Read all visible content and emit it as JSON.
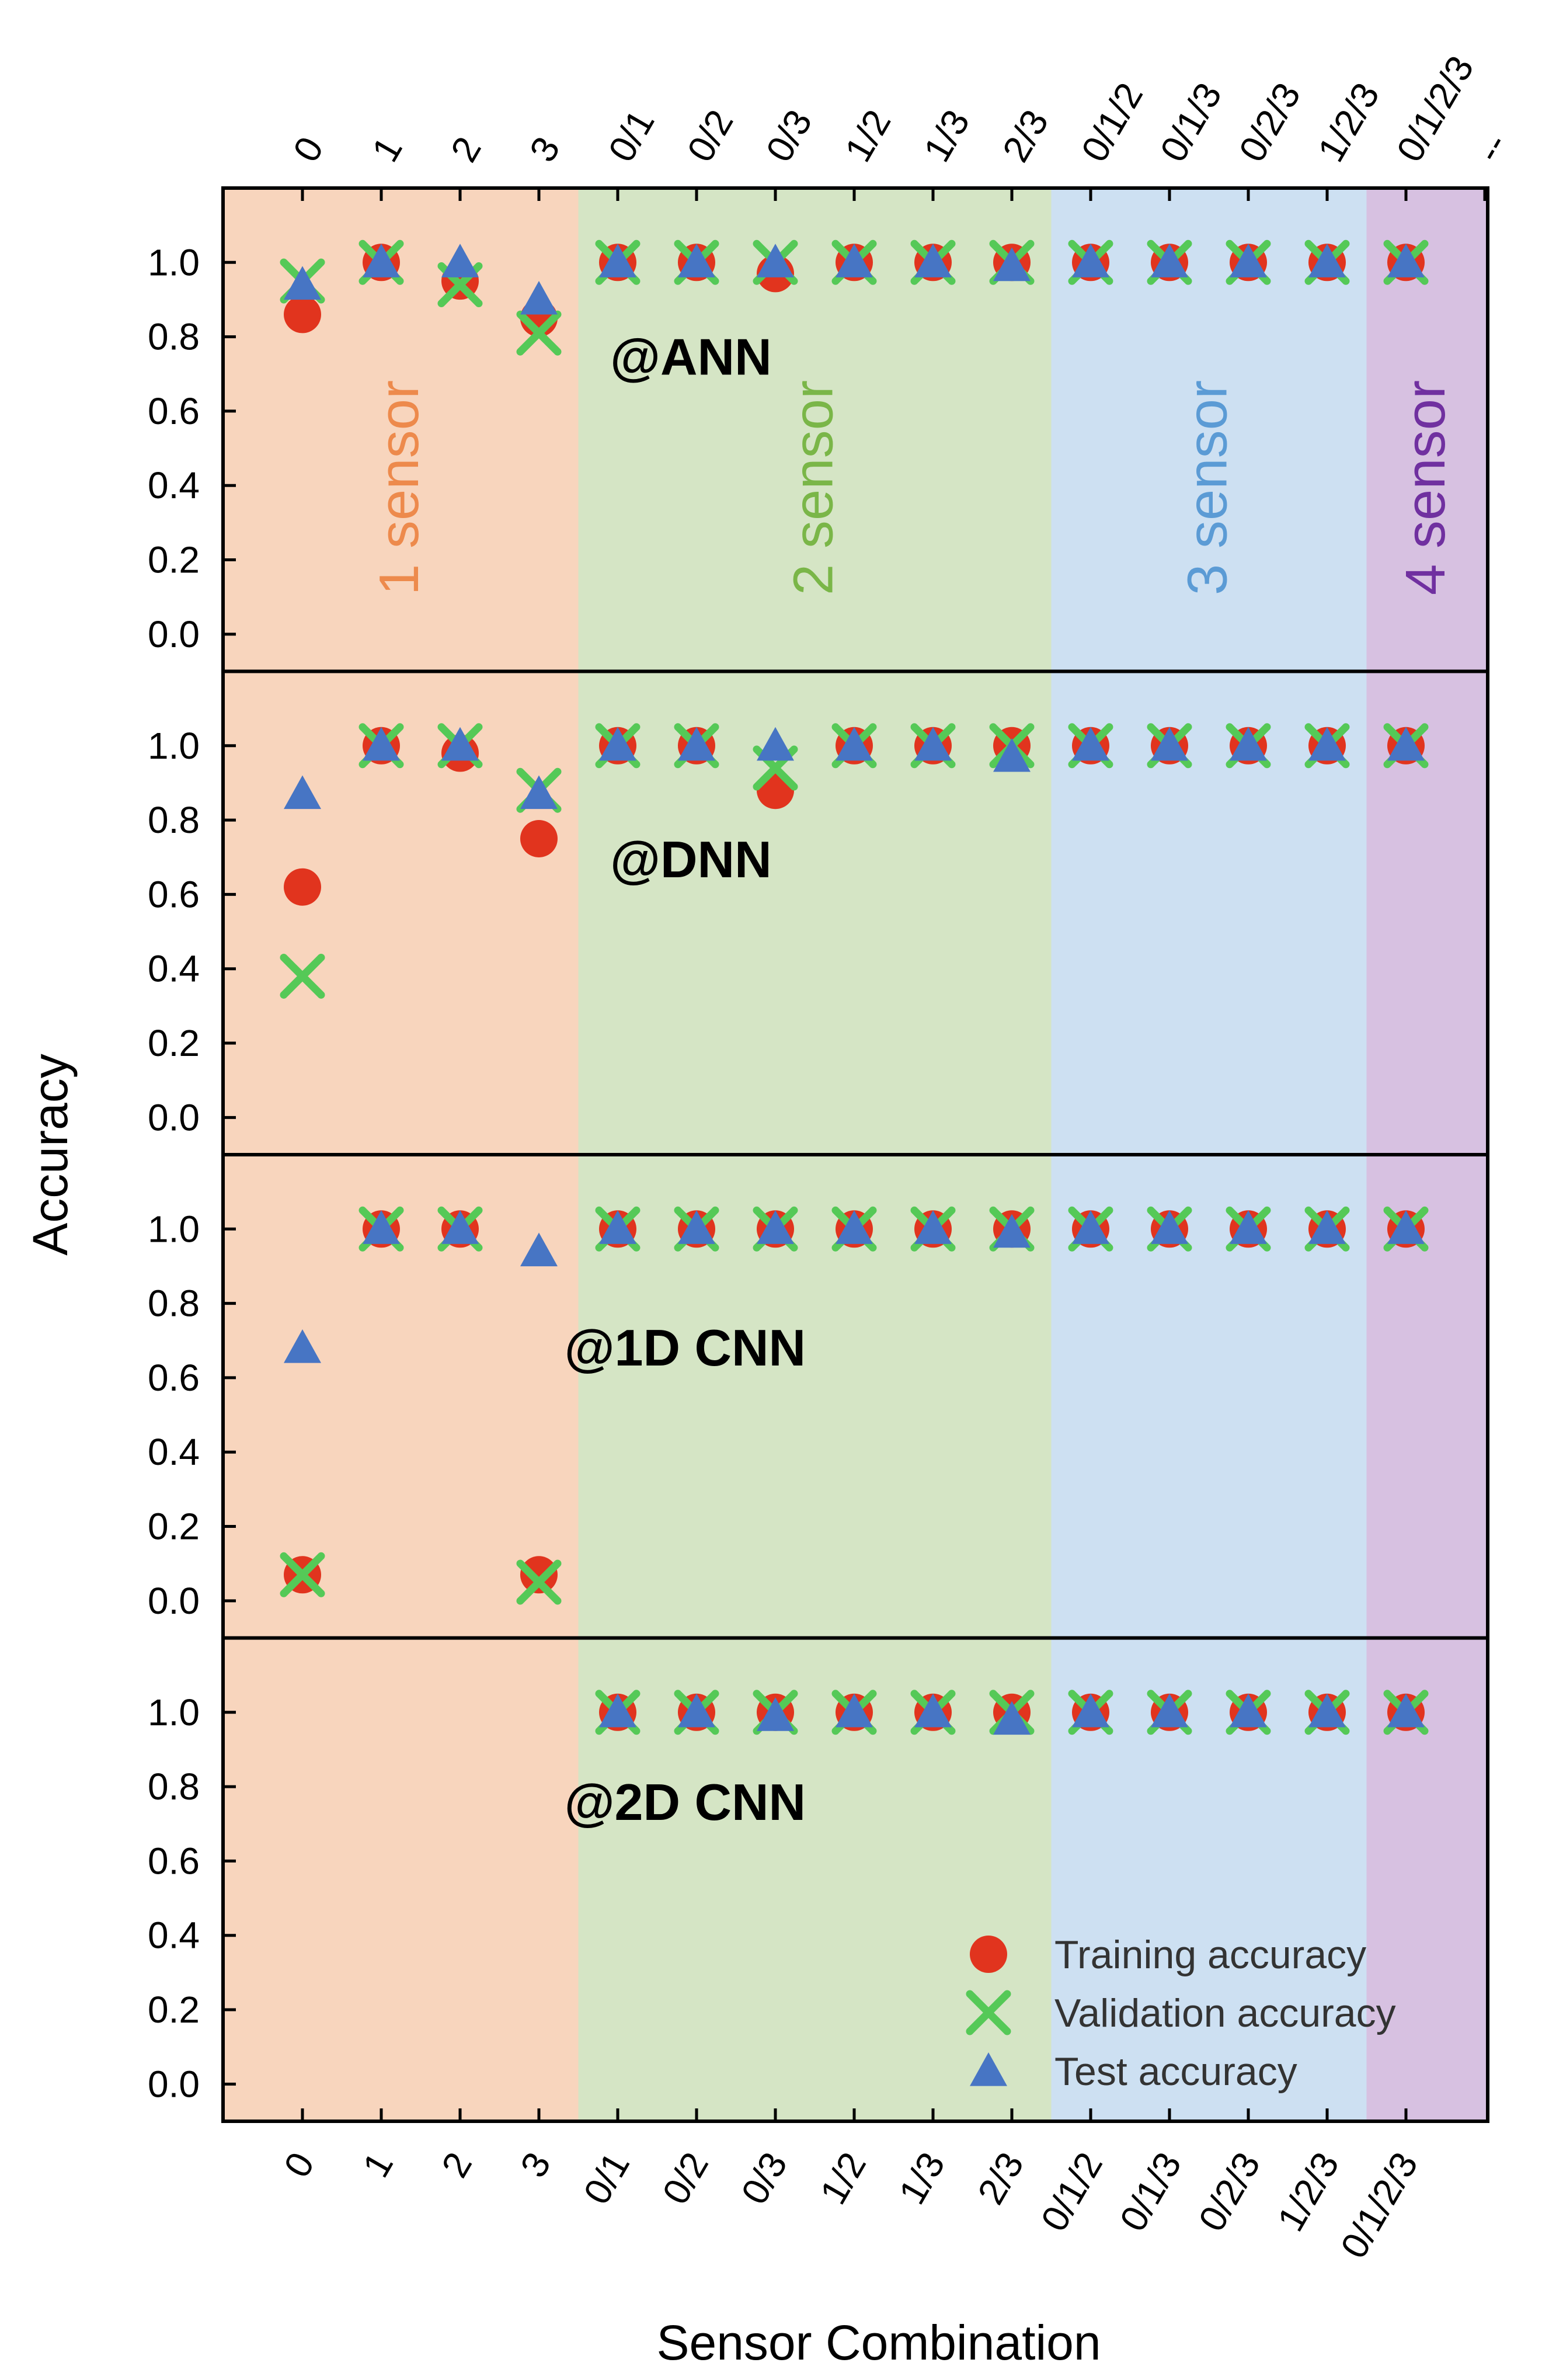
{
  "chart_data": {
    "type": "scatter",
    "categories": [
      "0",
      "1",
      "2",
      "3",
      "0/1",
      "0/2",
      "0/3",
      "1/2",
      "1/3",
      "2/3",
      "0/1/2",
      "0/1/3",
      "0/2/3",
      "1/2/3",
      "0/1/2/3"
    ],
    "top_categories": [
      "0",
      "1",
      "2",
      "3",
      "0/1",
      "0/2",
      "0/3",
      "1/2",
      "1/3",
      "2/3",
      "0/1/2",
      "0/1/3",
      "0/2/3",
      "1/2/3",
      "0/1/2/3",
      "--"
    ],
    "xlabel": "Sensor Combination",
    "ylabel": "Accuracy",
    "ylim": [
      -0.1,
      1.2
    ],
    "yticks": [
      "0.0",
      "0.2",
      "0.4",
      "0.6",
      "0.8",
      "1.0"
    ],
    "regions": [
      {
        "label": "1 sensor",
        "color": "#f8d5bd",
        "label_color": "#ed8a4c",
        "from": 0,
        "to": 3
      },
      {
        "label": "2 sensor",
        "color": "#d5e5c5",
        "label_color": "#7ab648",
        "from": 4,
        "to": 9
      },
      {
        "label": "3 sensor",
        "color": "#cde0f2",
        "label_color": "#5b9bd5",
        "from": 10,
        "to": 13
      },
      {
        "label": "4 sensor",
        "color": "#d7c1e1",
        "label_color": "#7030a0",
        "from": 14,
        "to": 14
      }
    ],
    "legend": {
      "placement": "bottom-right",
      "entries": [
        {
          "name": "Training accuracy",
          "marker": "circle",
          "color": "#e1341e"
        },
        {
          "name": "Validation accuracy",
          "marker": "x",
          "color": "#55c957"
        },
        {
          "name": "Test accuracy",
          "marker": "triangle",
          "color": "#4775c4"
        }
      ]
    },
    "panels": [
      {
        "label": "@ANN",
        "training": [
          0.86,
          1.0,
          0.95,
          0.85,
          1.0,
          1.0,
          0.97,
          1.0,
          1.0,
          1.0,
          1.0,
          1.0,
          1.0,
          1.0,
          1.0
        ],
        "validation": [
          0.95,
          1.0,
          0.94,
          0.81,
          1.0,
          1.0,
          1.0,
          1.0,
          1.0,
          1.0,
          1.0,
          1.0,
          1.0,
          1.0,
          1.0
        ],
        "test": [
          0.94,
          1.0,
          1.0,
          0.9,
          1.0,
          1.0,
          1.0,
          1.0,
          1.0,
          0.99,
          1.0,
          1.0,
          1.0,
          1.0,
          1.0
        ]
      },
      {
        "label": "@DNN",
        "training": [
          0.62,
          1.0,
          0.98,
          0.75,
          1.0,
          1.0,
          0.88,
          1.0,
          1.0,
          1.0,
          1.0,
          1.0,
          1.0,
          1.0,
          1.0
        ],
        "validation": [
          0.38,
          1.0,
          1.0,
          0.88,
          1.0,
          1.0,
          0.94,
          1.0,
          1.0,
          1.0,
          1.0,
          1.0,
          1.0,
          1.0,
          1.0
        ],
        "test": [
          0.87,
          1.0,
          1.0,
          0.87,
          1.0,
          1.0,
          1.0,
          1.0,
          1.0,
          0.97,
          1.0,
          1.0,
          1.0,
          1.0,
          1.0
        ]
      },
      {
        "label": "@1D CNN",
        "training": [
          0.07,
          1.0,
          1.0,
          0.07,
          1.0,
          1.0,
          1.0,
          1.0,
          1.0,
          1.0,
          1.0,
          1.0,
          1.0,
          1.0,
          1.0
        ],
        "validation": [
          0.07,
          1.0,
          1.0,
          0.05,
          1.0,
          1.0,
          1.0,
          1.0,
          1.0,
          1.0,
          1.0,
          1.0,
          1.0,
          1.0,
          1.0
        ],
        "test": [
          0.68,
          1.0,
          1.0,
          0.94,
          1.0,
          1.0,
          1.0,
          1.0,
          1.0,
          0.99,
          1.0,
          1.0,
          1.0,
          1.0,
          1.0
        ]
      },
      {
        "label": "@2D CNN",
        "training": [
          null,
          null,
          null,
          null,
          1.0,
          1.0,
          1.0,
          1.0,
          1.0,
          1.0,
          1.0,
          1.0,
          1.0,
          1.0,
          1.0
        ],
        "validation": [
          null,
          null,
          null,
          null,
          1.0,
          1.0,
          1.0,
          1.0,
          1.0,
          1.0,
          1.0,
          1.0,
          1.0,
          1.0,
          1.0
        ],
        "test": [
          null,
          null,
          null,
          null,
          1.0,
          1.0,
          0.99,
          1.0,
          1.0,
          0.98,
          1.0,
          1.0,
          1.0,
          1.0,
          1.0
        ]
      }
    ]
  }
}
